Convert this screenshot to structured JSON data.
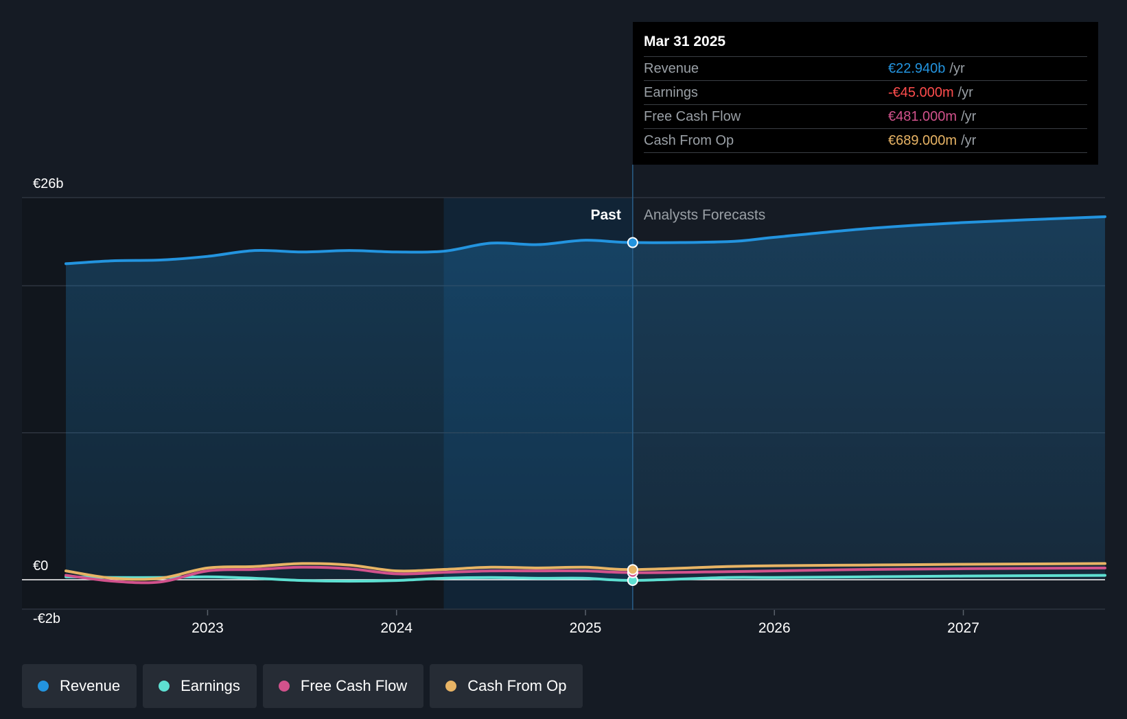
{
  "colors": {
    "revenue": "#2394df",
    "earnings": "#5ee0d2",
    "free_cash_flow": "#d2528c",
    "cash_from_op": "#e8b465",
    "negative": "#ff4d4d"
  },
  "tooltip": {
    "date": "Mar 31 2025",
    "rows": [
      {
        "label": "Revenue",
        "value": "€22.940b",
        "unit": "/yr"
      },
      {
        "label": "Earnings",
        "value": "-€45.000m",
        "unit": "/yr"
      },
      {
        "label": "Free Cash Flow",
        "value": "€481.000m",
        "unit": "/yr"
      },
      {
        "label": "Cash From Op",
        "value": "€689.000m",
        "unit": "/yr"
      }
    ]
  },
  "legend": [
    {
      "label": "Revenue",
      "color": "#2394df"
    },
    {
      "label": "Earnings",
      "color": "#5ee0d2"
    },
    {
      "label": "Free Cash Flow",
      "color": "#d2528c"
    },
    {
      "label": "Cash From Op",
      "color": "#e8b465"
    }
  ],
  "chart_data": {
    "type": "line",
    "x_unit": "year",
    "y_unit": "€b",
    "xlim": [
      2022.25,
      2027.75
    ],
    "ylim": [
      -2,
      26
    ],
    "y_tick_labels": [
      {
        "value": 26,
        "label": "€26b"
      },
      {
        "value": 0,
        "label": "€0"
      },
      {
        "value": -2,
        "label": "-€2b"
      }
    ],
    "y_gridlines": [
      26,
      20,
      10,
      0,
      -2
    ],
    "x_ticks": [
      {
        "value": 2023,
        "label": "2023"
      },
      {
        "value": 2024,
        "label": "2024"
      },
      {
        "value": 2025,
        "label": "2025"
      },
      {
        "value": 2026,
        "label": "2026"
      },
      {
        "value": 2027,
        "label": "2027"
      }
    ],
    "past_label": "Past",
    "forecast_label": "Analysts Forecasts",
    "highlight_start": 2024.25,
    "divider": 2025.25,
    "series": [
      {
        "name": "Revenue",
        "key": "revenue",
        "points": [
          [
            2022.25,
            21.5
          ],
          [
            2022.5,
            21.7
          ],
          [
            2022.75,
            21.75
          ],
          [
            2023.0,
            22.0
          ],
          [
            2023.25,
            22.4
          ],
          [
            2023.5,
            22.3
          ],
          [
            2023.75,
            22.4
          ],
          [
            2024.0,
            22.3
          ],
          [
            2024.25,
            22.35
          ],
          [
            2024.5,
            22.9
          ],
          [
            2024.75,
            22.8
          ],
          [
            2025.0,
            23.1
          ],
          [
            2025.25,
            22.94
          ],
          [
            2025.75,
            23.0
          ],
          [
            2026.0,
            23.3
          ],
          [
            2026.5,
            23.9
          ],
          [
            2027.0,
            24.3
          ],
          [
            2027.75,
            24.7
          ]
        ]
      },
      {
        "name": "Earnings",
        "key": "earnings",
        "points": [
          [
            2022.25,
            0.2
          ],
          [
            2022.5,
            0.15
          ],
          [
            2022.75,
            0.15
          ],
          [
            2023.0,
            0.2
          ],
          [
            2023.25,
            0.1
          ],
          [
            2023.5,
            -0.05
          ],
          [
            2023.75,
            -0.1
          ],
          [
            2024.0,
            -0.05
          ],
          [
            2024.25,
            0.1
          ],
          [
            2024.5,
            0.15
          ],
          [
            2024.75,
            0.1
          ],
          [
            2025.0,
            0.1
          ],
          [
            2025.25,
            -0.045
          ],
          [
            2025.75,
            0.15
          ],
          [
            2026.0,
            0.15
          ],
          [
            2026.5,
            0.2
          ],
          [
            2027.0,
            0.25
          ],
          [
            2027.75,
            0.3
          ]
        ]
      },
      {
        "name": "Free Cash Flow",
        "key": "free_cash_flow",
        "points": [
          [
            2022.25,
            0.3
          ],
          [
            2022.5,
            -0.1
          ],
          [
            2022.75,
            -0.15
          ],
          [
            2023.0,
            0.6
          ],
          [
            2023.25,
            0.7
          ],
          [
            2023.5,
            0.85
          ],
          [
            2023.75,
            0.75
          ],
          [
            2024.0,
            0.4
          ],
          [
            2024.25,
            0.5
          ],
          [
            2024.5,
            0.6
          ],
          [
            2024.75,
            0.6
          ],
          [
            2025.0,
            0.6
          ],
          [
            2025.25,
            0.481
          ],
          [
            2025.75,
            0.55
          ],
          [
            2026.0,
            0.6
          ],
          [
            2026.5,
            0.7
          ],
          [
            2027.0,
            0.75
          ],
          [
            2027.75,
            0.8
          ]
        ]
      },
      {
        "name": "Cash From Op",
        "key": "cash_from_op",
        "points": [
          [
            2022.25,
            0.6
          ],
          [
            2022.5,
            0.1
          ],
          [
            2022.75,
            0.1
          ],
          [
            2023.0,
            0.8
          ],
          [
            2023.25,
            0.9
          ],
          [
            2023.5,
            1.1
          ],
          [
            2023.75,
            1.0
          ],
          [
            2024.0,
            0.6
          ],
          [
            2024.25,
            0.7
          ],
          [
            2024.5,
            0.85
          ],
          [
            2024.75,
            0.8
          ],
          [
            2025.0,
            0.85
          ],
          [
            2025.25,
            0.689
          ],
          [
            2025.75,
            0.9
          ],
          [
            2026.0,
            0.95
          ],
          [
            2026.5,
            1.0
          ],
          [
            2027.0,
            1.05
          ],
          [
            2027.75,
            1.1
          ]
        ]
      }
    ]
  }
}
